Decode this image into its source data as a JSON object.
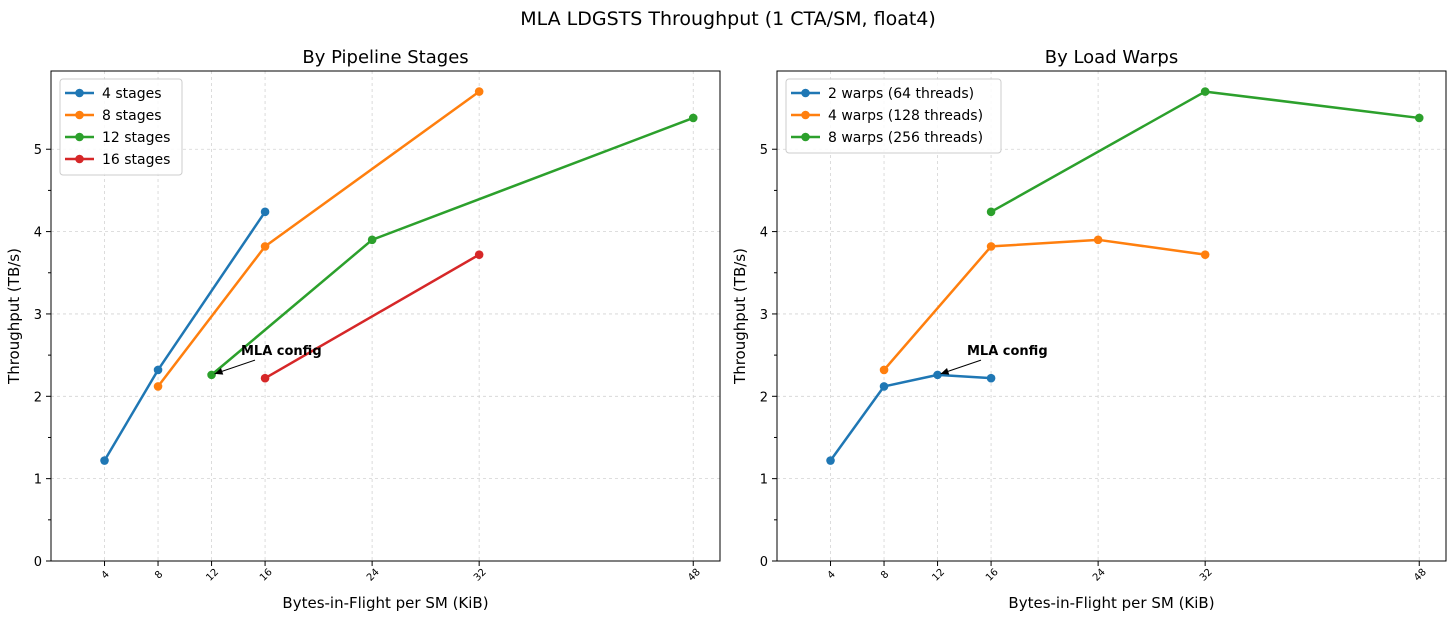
{
  "figure_title": "MLA LDGSTS Throughput (1 CTA/SM, float4)",
  "chart_data": [
    {
      "type": "line",
      "title": "By Pipeline Stages",
      "xlabel": "Bytes-in-Flight per SM (KiB)",
      "ylabel": "Throughput (TB/s)",
      "x_ticks": [
        4,
        8,
        12,
        16,
        24,
        32,
        48
      ],
      "y_ticks": [
        0,
        1,
        2,
        3,
        4,
        5
      ],
      "xlim": [
        0,
        50
      ],
      "ylim": [
        0,
        5.95
      ],
      "grid": true,
      "legend_position": "upper left",
      "series": [
        {
          "name": "4 stages",
          "color": "#1f77b4",
          "x": [
            4,
            8,
            16
          ],
          "y": [
            1.22,
            2.32,
            4.24
          ]
        },
        {
          "name": "8 stages",
          "color": "#ff7f0e",
          "x": [
            8,
            16,
            32
          ],
          "y": [
            2.12,
            3.82,
            5.7
          ]
        },
        {
          "name": "12 stages",
          "color": "#2ca02c",
          "x": [
            12,
            24,
            48
          ],
          "y": [
            2.26,
            3.9,
            5.38
          ]
        },
        {
          "name": "16 stages",
          "color": "#d62728",
          "x": [
            16,
            32
          ],
          "y": [
            2.22,
            3.72
          ]
        }
      ],
      "annotation": {
        "text": "MLA config",
        "x": 12,
        "y": 2.26,
        "text_x": 14.2,
        "text_y": 2.5
      }
    },
    {
      "type": "line",
      "title": "By Load Warps",
      "xlabel": "Bytes-in-Flight per SM (KiB)",
      "ylabel": "Throughput (TB/s)",
      "x_ticks": [
        4,
        8,
        12,
        16,
        24,
        32,
        48
      ],
      "y_ticks": [
        0,
        1,
        2,
        3,
        4,
        5
      ],
      "xlim": [
        0,
        50
      ],
      "ylim": [
        0,
        5.95
      ],
      "grid": true,
      "legend_position": "upper left",
      "series": [
        {
          "name": "2 warps (64 threads)",
          "color": "#1f77b4",
          "x": [
            4,
            8,
            12,
            16
          ],
          "y": [
            1.22,
            2.12,
            2.26,
            2.22
          ]
        },
        {
          "name": "4 warps (128 threads)",
          "color": "#ff7f0e",
          "x": [
            8,
            16,
            24,
            32
          ],
          "y": [
            2.32,
            3.82,
            3.9,
            3.72
          ]
        },
        {
          "name": "8 warps (256 threads)",
          "color": "#2ca02c",
          "x": [
            16,
            32,
            48
          ],
          "y": [
            4.24,
            5.7,
            5.38
          ]
        }
      ],
      "annotation": {
        "text": "MLA config",
        "x": 12,
        "y": 2.26,
        "text_x": 14.2,
        "text_y": 2.5
      }
    }
  ]
}
